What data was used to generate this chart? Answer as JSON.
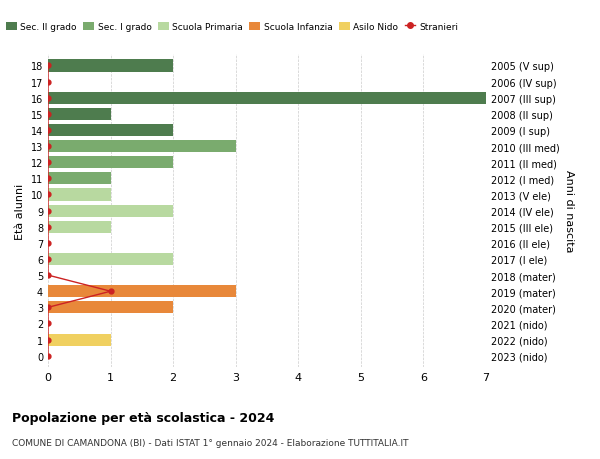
{
  "title": "Popolazione per età scolastica - 2024",
  "subtitle": "COMUNE DI CAMANDONA (BI) - Dati ISTAT 1° gennaio 2024 - Elaborazione TUTTITALIA.IT",
  "xlabel_left": "Età alunni",
  "ylabel_right": "Anni di nascita",
  "xlim": [
    0,
    7
  ],
  "ages": [
    18,
    17,
    16,
    15,
    14,
    13,
    12,
    11,
    10,
    9,
    8,
    7,
    6,
    5,
    4,
    3,
    2,
    1,
    0
  ],
  "year_labels": [
    "2005 (V sup)",
    "2006 (IV sup)",
    "2007 (III sup)",
    "2008 (II sup)",
    "2009 (I sup)",
    "2010 (III med)",
    "2011 (II med)",
    "2012 (I med)",
    "2013 (V ele)",
    "2014 (IV ele)",
    "2015 (III ele)",
    "2016 (II ele)",
    "2017 (I ele)",
    "2018 (mater)",
    "2019 (mater)",
    "2020 (mater)",
    "2021 (nido)",
    "2022 (nido)",
    "2023 (nido)"
  ],
  "bar_values": [
    2,
    0,
    7,
    1,
    2,
    3,
    2,
    1,
    1,
    2,
    1,
    0,
    2,
    0,
    3,
    2,
    0,
    1,
    0
  ],
  "bar_colors": [
    "#4e7c4e",
    "#4e7c4e",
    "#4e7c4e",
    "#4e7c4e",
    "#4e7c4e",
    "#7aab6e",
    "#7aab6e",
    "#7aab6e",
    "#b8d9a0",
    "#b8d9a0",
    "#b8d9a0",
    "#b8d9a0",
    "#b8d9a0",
    "#e8883a",
    "#e8883a",
    "#e8883a",
    "#f0d060",
    "#f0d060",
    "#f0d060"
  ],
  "stranieri_values": [
    0,
    0,
    0,
    0,
    0,
    0,
    0,
    0,
    0,
    0,
    0,
    0,
    0,
    0,
    1,
    0,
    0,
    0,
    0
  ],
  "stranieri_color": "#cc2222",
  "legend_items": [
    {
      "label": "Sec. II grado",
      "color": "#4e7c4e"
    },
    {
      "label": "Sec. I grado",
      "color": "#7aab6e"
    },
    {
      "label": "Scuola Primaria",
      "color": "#b8d9a0"
    },
    {
      "label": "Scuola Infanzia",
      "color": "#e8883a"
    },
    {
      "label": "Asilo Nido",
      "color": "#f0d060"
    },
    {
      "label": "Stranieri",
      "color": "#cc2222"
    }
  ],
  "bg_color": "#ffffff",
  "grid_color": "#cccccc",
  "bar_height": 0.75
}
